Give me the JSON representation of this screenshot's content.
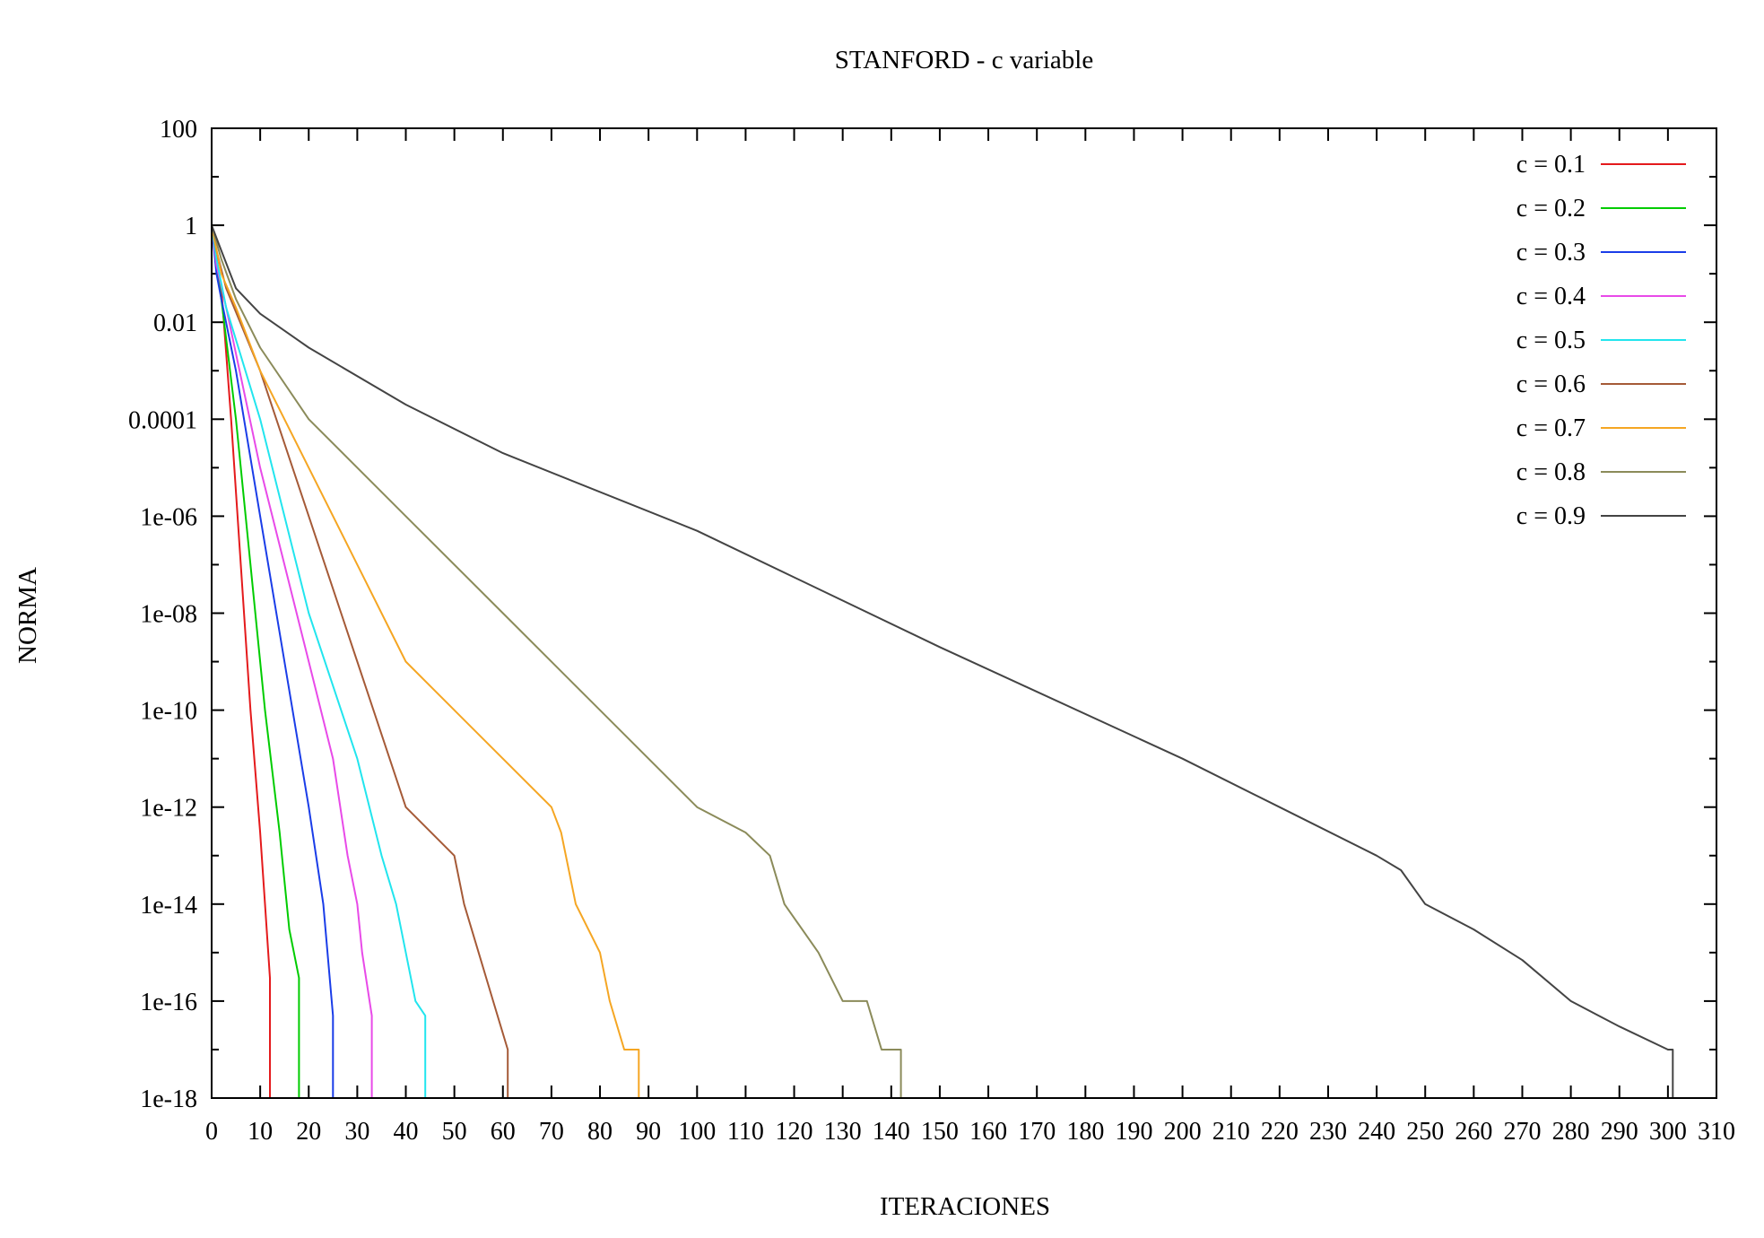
{
  "chart_data": {
    "type": "line",
    "title": "STANFORD - c variable",
    "xlabel": "ITERACIONES",
    "ylabel": "NORMA",
    "xlim": [
      0,
      310
    ],
    "ylim": [
      1e-18,
      100
    ],
    "yscale": "log",
    "grid": false,
    "legend_position": "top-right",
    "x_ticks": [
      "0",
      "10",
      "20",
      "30",
      "40",
      "50",
      "60",
      "70",
      "80",
      "90",
      "100",
      "110",
      "120",
      "130",
      "140",
      "150",
      "160",
      "170",
      "180",
      "190",
      "200",
      "210",
      "220",
      "230",
      "240",
      "250",
      "260",
      "270",
      "280",
      "290",
      "300",
      "310"
    ],
    "y_ticks": [
      "100",
      "1",
      "0.01",
      "0.0001",
      "1e-06",
      "1e-08",
      "1e-10",
      "1e-12",
      "1e-14",
      "1e-16",
      "1e-18"
    ],
    "series": [
      {
        "name": "c = 0.1",
        "color": "#e41a1c",
        "points": [
          [
            0,
            1
          ],
          [
            2,
            0.05
          ],
          [
            4,
            0.0001
          ],
          [
            6,
            1e-07
          ],
          [
            8,
            1e-10
          ],
          [
            10,
            3e-13
          ],
          [
            11,
            1e-14
          ],
          [
            12,
            3e-16
          ],
          [
            12,
            1e-18
          ]
        ]
      },
      {
        "name": "c = 0.2",
        "color": "#00cc00",
        "points": [
          [
            0,
            1
          ],
          [
            2,
            0.03
          ],
          [
            5,
            0.0001
          ],
          [
            8,
            1e-07
          ],
          [
            11,
            1e-10
          ],
          [
            14,
            3e-13
          ],
          [
            16,
            3e-15
          ],
          [
            18,
            3e-16
          ],
          [
            18,
            1e-18
          ]
        ]
      },
      {
        "name": "c = 0.3",
        "color": "#1a3de8",
        "points": [
          [
            0,
            1
          ],
          [
            1,
            0.1
          ],
          [
            2,
            0.03
          ],
          [
            5,
            0.001
          ],
          [
            10,
            1e-06
          ],
          [
            15,
            1e-09
          ],
          [
            20,
            1e-12
          ],
          [
            23,
            1e-14
          ],
          [
            25,
            5e-17
          ],
          [
            25,
            1e-18
          ]
        ]
      },
      {
        "name": "c = 0.4",
        "color": "#e84ae8",
        "points": [
          [
            0,
            1
          ],
          [
            1,
            0.15
          ],
          [
            3,
            0.02
          ],
          [
            10,
            1e-05
          ],
          [
            15,
            1e-07
          ],
          [
            20,
            1e-09
          ],
          [
            25,
            1e-11
          ],
          [
            28,
            1e-13
          ],
          [
            30,
            1e-14
          ],
          [
            31,
            1e-15
          ],
          [
            33,
            5e-17
          ],
          [
            33,
            1e-18
          ]
        ]
      },
      {
        "name": "c = 0.5",
        "color": "#22e5ee",
        "points": [
          [
            0,
            1
          ],
          [
            1,
            0.2
          ],
          [
            3,
            0.02
          ],
          [
            10,
            0.0001
          ],
          [
            20,
            1e-08
          ],
          [
            30,
            1e-11
          ],
          [
            35,
            1e-13
          ],
          [
            38,
            1e-14
          ],
          [
            40,
            1e-15
          ],
          [
            42,
            1e-16
          ],
          [
            44,
            5e-17
          ],
          [
            44,
            1e-18
          ]
        ]
      },
      {
        "name": "c = 0.6",
        "color": "#a55a37",
        "points": [
          [
            0,
            1
          ],
          [
            1,
            0.3
          ],
          [
            3,
            0.05
          ],
          [
            10,
            0.001
          ],
          [
            20,
            1e-06
          ],
          [
            30,
            1e-09
          ],
          [
            40,
            1e-12
          ],
          [
            50,
            1e-13
          ],
          [
            52,
            1e-14
          ],
          [
            55,
            1e-15
          ],
          [
            58,
            1e-16
          ],
          [
            61,
            1e-17
          ],
          [
            61,
            1e-18
          ]
        ]
      },
      {
        "name": "c = 0.7",
        "color": "#f5a623",
        "points": [
          [
            0,
            1
          ],
          [
            2,
            0.1
          ],
          [
            5,
            0.02
          ],
          [
            10,
            0.001
          ],
          [
            20,
            1e-05
          ],
          [
            30,
            1e-07
          ],
          [
            40,
            1e-09
          ],
          [
            50,
            1e-10
          ],
          [
            60,
            1e-11
          ],
          [
            70,
            1e-12
          ],
          [
            72,
            3e-13
          ],
          [
            75,
            1e-14
          ],
          [
            80,
            1e-15
          ],
          [
            82,
            1e-16
          ],
          [
            85,
            1e-17
          ],
          [
            88,
            1e-17
          ],
          [
            88,
            1e-18
          ]
        ]
      },
      {
        "name": "c = 0.8",
        "color": "#8b8b5a",
        "points": [
          [
            0,
            1
          ],
          [
            2,
            0.2
          ],
          [
            5,
            0.03
          ],
          [
            10,
            0.003
          ],
          [
            20,
            0.0001
          ],
          [
            40,
            1e-06
          ],
          [
            60,
            1e-08
          ],
          [
            80,
            1e-10
          ],
          [
            100,
            1e-12
          ],
          [
            110,
            3e-13
          ],
          [
            115,
            1e-13
          ],
          [
            118,
            1e-14
          ],
          [
            125,
            1e-15
          ],
          [
            130,
            1e-16
          ],
          [
            135,
            1e-16
          ],
          [
            138,
            1e-17
          ],
          [
            140,
            1e-17
          ],
          [
            142,
            1e-17
          ],
          [
            142,
            1e-18
          ]
        ]
      },
      {
        "name": "c = 0.9",
        "color": "#444444",
        "points": [
          [
            0,
            1
          ],
          [
            2,
            0.3
          ],
          [
            5,
            0.05
          ],
          [
            10,
            0.015
          ],
          [
            20,
            0.003
          ],
          [
            40,
            0.0002
          ],
          [
            60,
            2e-05
          ],
          [
            100,
            5e-07
          ],
          [
            150,
            2e-09
          ],
          [
            200,
            1e-11
          ],
          [
            220,
            1e-12
          ],
          [
            240,
            1e-13
          ],
          [
            245,
            5e-14
          ],
          [
            250,
            1e-14
          ],
          [
            260,
            3e-15
          ],
          [
            270,
            7e-16
          ],
          [
            280,
            1e-16
          ],
          [
            290,
            3e-17
          ],
          [
            300,
            1e-17
          ],
          [
            301,
            1e-17
          ],
          [
            301,
            1e-18
          ]
        ]
      }
    ]
  }
}
